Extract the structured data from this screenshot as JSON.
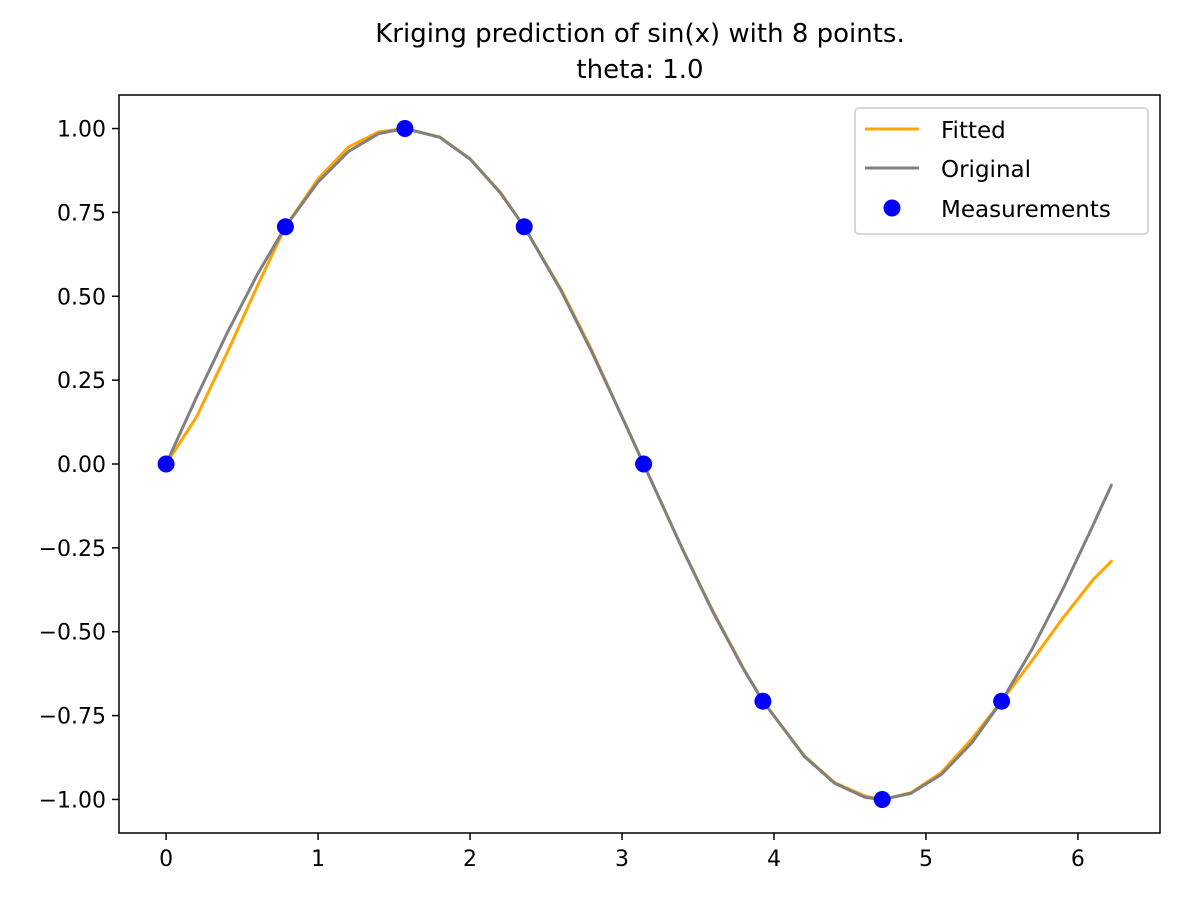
{
  "chart_data": {
    "type": "line",
    "title": "Kriging prediction of sin(x) with 8 points.",
    "subtitle": "theta: 1.0",
    "xlabel": "",
    "ylabel": "",
    "xlim": [
      -0.31,
      6.54
    ],
    "ylim": [
      -1.1,
      1.1
    ],
    "x_ticks": [
      0,
      1,
      2,
      3,
      4,
      5,
      6
    ],
    "x_tick_labels": [
      "0",
      "1",
      "2",
      "3",
      "4",
      "5",
      "6"
    ],
    "y_ticks": [
      1.0,
      0.75,
      0.5,
      0.25,
      0.0,
      -0.25,
      -0.5,
      -0.75,
      -1.0
    ],
    "y_tick_labels": [
      "1.00",
      "0.75",
      "0.50",
      "0.25",
      "0.00",
      "−0.25",
      "−0.50",
      "−0.75",
      "−1.00"
    ],
    "grid": false,
    "legend_position": "upper right",
    "series": [
      {
        "name": "Fitted",
        "kind": "line",
        "color": "#ffa500",
        "x": [
          0,
          0.2,
          0.4,
          0.6,
          0.785,
          1.0,
          1.2,
          1.4,
          1.571,
          1.8,
          2.0,
          2.2,
          2.356,
          2.6,
          2.8,
          3.0,
          3.142,
          3.4,
          3.6,
          3.8,
          3.927,
          4.2,
          4.4,
          4.6,
          4.712,
          4.9,
          5.1,
          5.3,
          5.498,
          5.7,
          5.9,
          6.1,
          6.22
        ],
        "y": [
          0,
          0.14,
          0.33,
          0.53,
          0.707,
          0.85,
          0.945,
          0.99,
          1.0,
          0.975,
          0.91,
          0.81,
          0.707,
          0.52,
          0.34,
          0.14,
          0,
          -0.255,
          -0.44,
          -0.61,
          -0.707,
          -0.87,
          -0.95,
          -0.99,
          -1.0,
          -0.98,
          -0.92,
          -0.82,
          -0.707,
          -0.585,
          -0.46,
          -0.345,
          -0.29
        ]
      },
      {
        "name": "Original",
        "kind": "line",
        "color": "#808080",
        "x": [
          0,
          0.2,
          0.4,
          0.6,
          0.785,
          1.0,
          1.2,
          1.4,
          1.571,
          1.8,
          2.0,
          2.2,
          2.356,
          2.6,
          2.8,
          3.0,
          3.142,
          3.4,
          3.6,
          3.8,
          3.927,
          4.2,
          4.4,
          4.6,
          4.712,
          4.9,
          5.1,
          5.3,
          5.498,
          5.7,
          5.9,
          6.1,
          6.22
        ],
        "y": [
          0,
          0.199,
          0.389,
          0.565,
          0.707,
          0.841,
          0.932,
          0.985,
          1.0,
          0.974,
          0.909,
          0.808,
          0.707,
          0.516,
          0.335,
          0.141,
          0,
          -0.256,
          -0.443,
          -0.612,
          -0.707,
          -0.872,
          -0.952,
          -0.994,
          -1.0,
          -0.982,
          -0.926,
          -0.832,
          -0.707,
          -0.551,
          -0.374,
          -0.182,
          -0.063
        ]
      },
      {
        "name": "Measurements",
        "kind": "markers",
        "color": "#0000ff",
        "x": [
          0,
          0.785,
          1.571,
          2.356,
          3.142,
          3.927,
          4.712,
          5.498
        ],
        "y": [
          0,
          0.707,
          1.0,
          0.707,
          0,
          -0.707,
          -1.0,
          -0.707
        ]
      }
    ]
  }
}
